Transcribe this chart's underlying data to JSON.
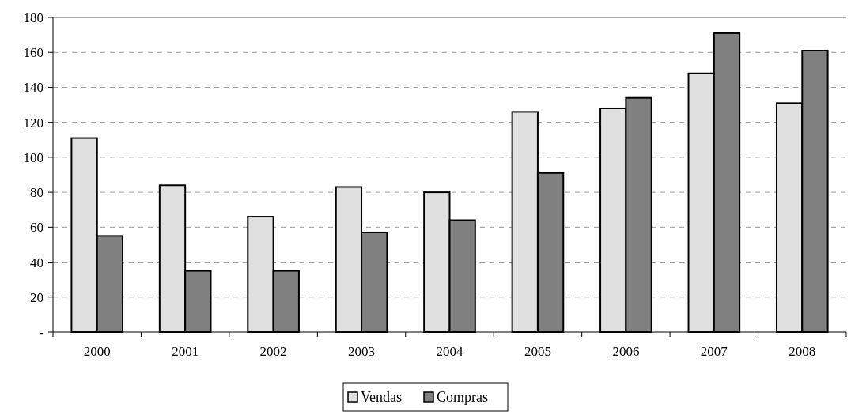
{
  "chart_data": {
    "type": "bar",
    "categories": [
      "2000",
      "2001",
      "2002",
      "2003",
      "2004",
      "2005",
      "2006",
      "2007",
      "2008"
    ],
    "series": [
      {
        "name": "Vendas",
        "color": "#e0e0e0",
        "values": [
          111,
          84,
          66,
          83,
          80,
          126,
          128,
          148,
          131
        ]
      },
      {
        "name": "Compras",
        "color": "#808080",
        "values": [
          55,
          35,
          35,
          57,
          64,
          91,
          134,
          171,
          161
        ]
      }
    ],
    "ylim": [
      0,
      180
    ],
    "yticks": [
      {
        "value": 0,
        "label": "-"
      },
      20,
      40,
      60,
      80,
      100,
      120,
      140,
      160,
      180
    ],
    "grid": "y",
    "legend": "bottom"
  }
}
